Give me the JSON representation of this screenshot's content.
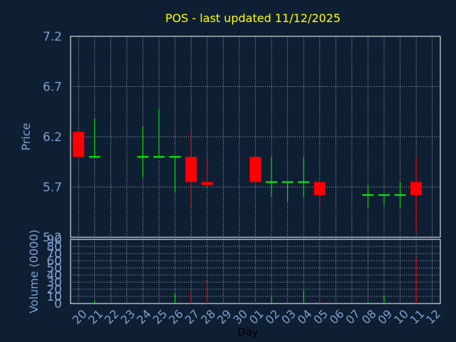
{
  "chart_data": {
    "type": "candlestick",
    "title": "POS - last updated 11/12/2025",
    "xlabel": "Day",
    "ylabel_price": "Price",
    "ylabel_volume": "Volume (0000)",
    "price_ylim": [
      5.2,
      7.2
    ],
    "price_ticks": [
      "7.2",
      "6.7",
      "6.2",
      "5.7",
      "5.2"
    ],
    "volume_ylim": [
      0,
      90
    ],
    "volume_ticks": [
      "90",
      "80",
      "70",
      "60",
      "50",
      "40",
      "30",
      "20",
      "10",
      "0"
    ],
    "x_ticks": [
      "20",
      "21",
      "22",
      "23",
      "24",
      "25",
      "26",
      "27",
      "28",
      "29",
      "30",
      "01",
      "02",
      "03",
      "04",
      "05",
      "06",
      "07",
      "08",
      "09",
      "10",
      "11",
      "12"
    ],
    "grid": true,
    "colors": {
      "up": "#00ff00",
      "down": "#ff0000",
      "background": "#0f1f33",
      "grid": "#ffffff",
      "title": "#ffff00",
      "axis_text": "#7f9fcf"
    },
    "candles": [
      {
        "day": "20",
        "open": 6.25,
        "high": 6.25,
        "low": 6.0,
        "close": 6.0,
        "volume": 0
      },
      {
        "day": "21",
        "open": 6.0,
        "high": 6.38,
        "low": 6.0,
        "close": 6.0,
        "volume": 4
      },
      {
        "day": "24",
        "open": 6.0,
        "high": 6.3,
        "low": 5.8,
        "close": 6.0,
        "volume": 1
      },
      {
        "day": "25",
        "open": 6.0,
        "high": 6.48,
        "low": 6.0,
        "close": 6.0,
        "volume": 0
      },
      {
        "day": "26",
        "open": 6.0,
        "high": 6.0,
        "low": 5.65,
        "close": 6.0,
        "volume": 15
      },
      {
        "day": "27",
        "open": 6.0,
        "high": 6.25,
        "low": 5.5,
        "close": 5.75,
        "volume": 20
      },
      {
        "day": "28",
        "open": 5.75,
        "high": 6.0,
        "low": 5.72,
        "close": 5.72,
        "volume": 32
      },
      {
        "day": "01",
        "open": 6.0,
        "high": 6.48,
        "low": 5.62,
        "close": 5.75,
        "volume": 21
      },
      {
        "day": "02",
        "open": 5.75,
        "high": 6.0,
        "low": 5.6,
        "close": 5.75,
        "volume": 10
      },
      {
        "day": "03",
        "open": 5.75,
        "high": 5.75,
        "low": 5.55,
        "close": 5.75,
        "volume": 0
      },
      {
        "day": "04",
        "open": 5.75,
        "high": 6.0,
        "low": 5.6,
        "close": 5.75,
        "volume": 19
      },
      {
        "day": "05",
        "open": 5.75,
        "high": 5.75,
        "low": 5.52,
        "close": 5.62,
        "volume": 6
      },
      {
        "day": "08",
        "open": 5.62,
        "high": 5.72,
        "low": 5.5,
        "close": 5.62,
        "volume": 3
      },
      {
        "day": "09",
        "open": 5.62,
        "high": 5.62,
        "low": 5.52,
        "close": 5.62,
        "volume": 12
      },
      {
        "day": "10",
        "open": 5.62,
        "high": 5.75,
        "low": 5.5,
        "close": 5.62,
        "volume": 0
      },
      {
        "day": "11",
        "open": 5.75,
        "high": 6.0,
        "low": 5.25,
        "close": 5.62,
        "volume": 65
      }
    ]
  }
}
